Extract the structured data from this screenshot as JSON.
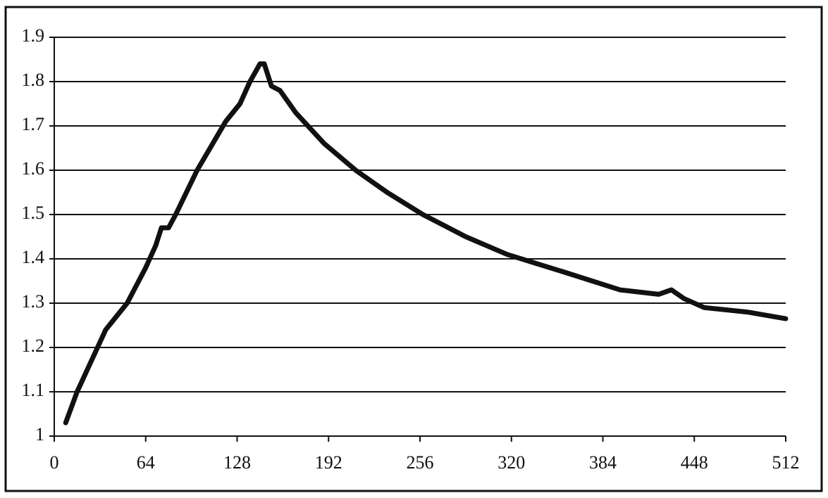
{
  "chart_data": {
    "type": "line",
    "x": [
      8,
      16,
      36,
      51,
      64,
      71,
      75,
      80,
      85,
      100,
      120,
      130,
      137,
      144,
      147,
      152,
      158,
      169,
      189,
      211,
      233,
      258,
      288,
      317,
      357,
      396,
      423,
      432,
      441,
      455,
      485,
      512
    ],
    "series": [
      {
        "color": "#111111",
        "values": [
          1.03,
          1.1,
          1.24,
          1.3,
          1.38,
          1.43,
          1.47,
          1.47,
          1.5,
          1.6,
          1.71,
          1.75,
          1.8,
          1.84,
          1.84,
          1.79,
          1.78,
          1.73,
          1.66,
          1.6,
          1.55,
          1.5,
          1.45,
          1.41,
          1.37,
          1.33,
          1.32,
          1.33,
          1.31,
          1.29,
          1.28,
          1.265
        ]
      }
    ],
    "xlim": [
      0,
      512
    ],
    "xticks": [
      0,
      64,
      128,
      192,
      256,
      320,
      384,
      448,
      512
    ],
    "ylim": [
      1,
      1.9
    ],
    "yticks": [
      1,
      1.1,
      1.2,
      1.3,
      1.4,
      1.5,
      1.6,
      1.7,
      1.8,
      1.9
    ],
    "grid": true
  }
}
